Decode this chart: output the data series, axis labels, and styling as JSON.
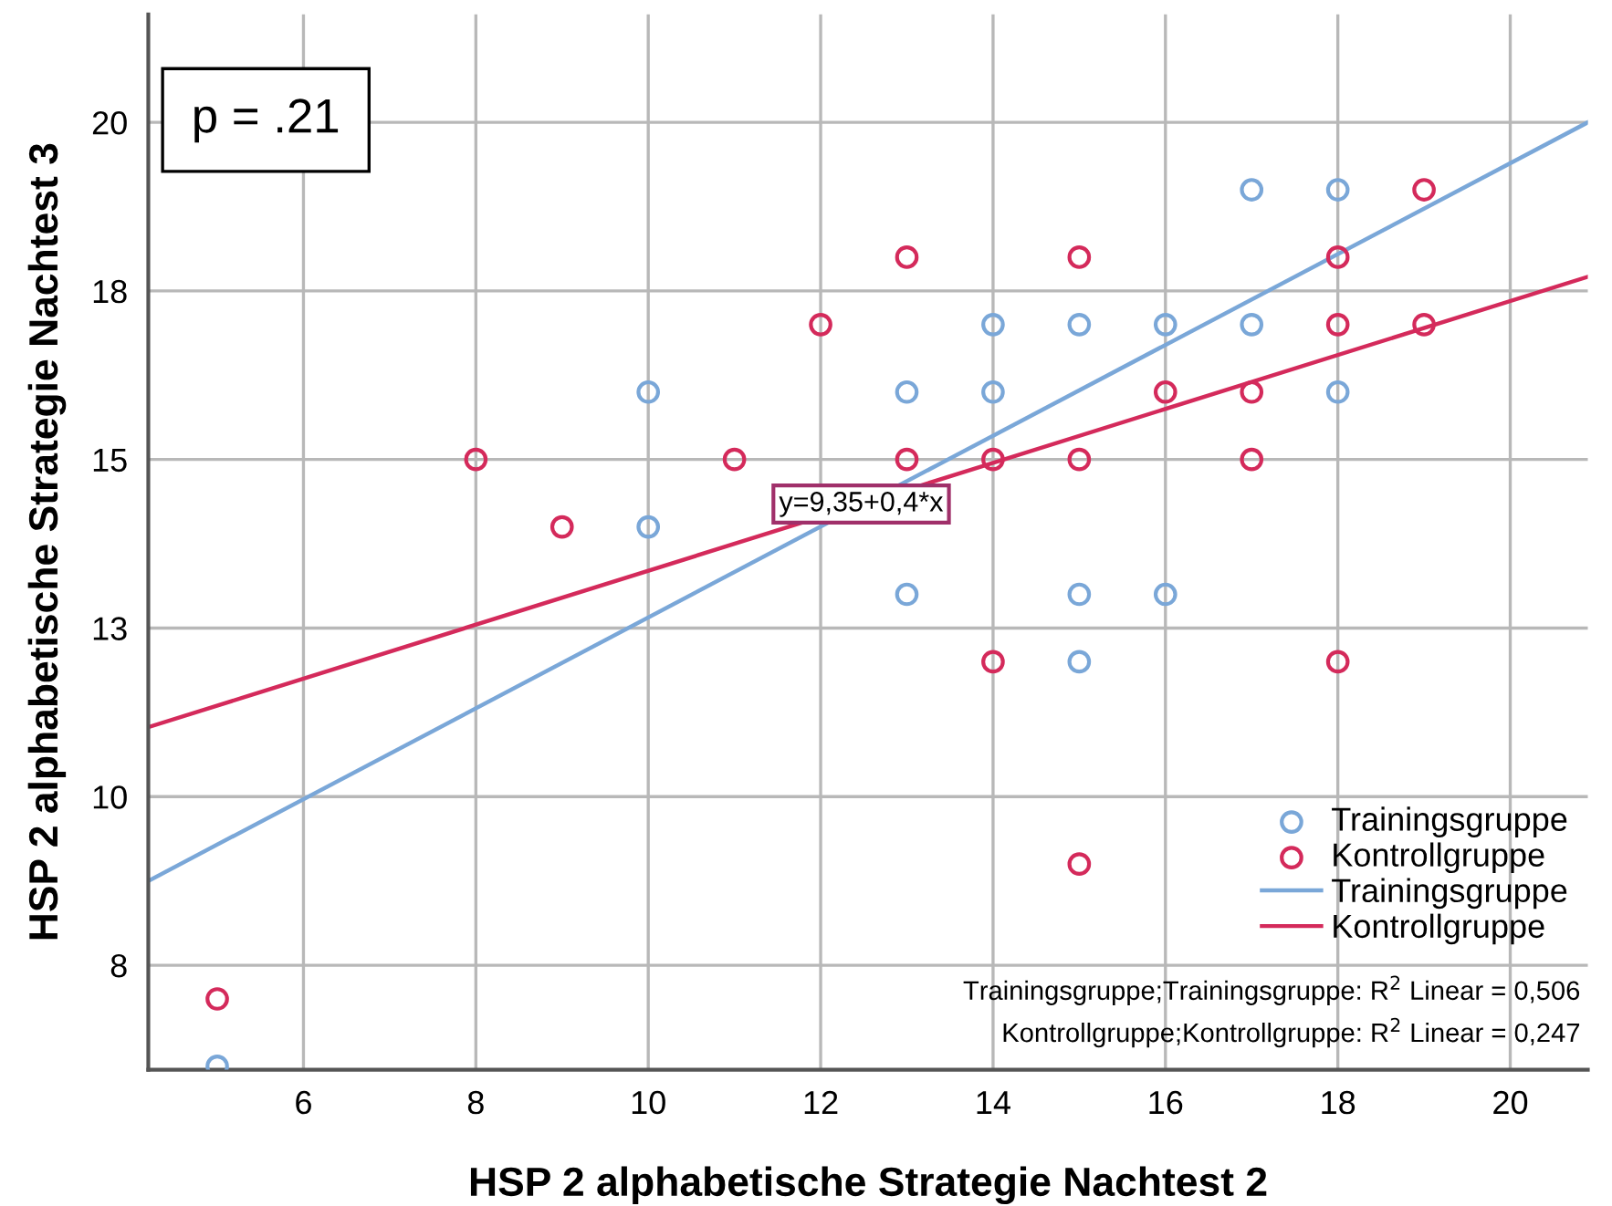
{
  "chart_data": {
    "type": "scatter",
    "xlabel": "HSP 2 alphabetische Strategie Nachtest 2",
    "ylabel": "HSP 2 alphabetische Strategie Nachtest 3",
    "xlim": [
      4.2,
      20.9
    ],
    "xticks": [
      6,
      8,
      10,
      12,
      14,
      16,
      18,
      20
    ],
    "ylim": [
      5.95,
      21.6
    ],
    "yticks": [
      {
        "value": 7.5,
        "label": "8"
      },
      10,
      {
        "value": 12.5,
        "label": "13"
      },
      15,
      {
        "value": 17.5,
        "label": "18"
      },
      20
    ],
    "grid": true,
    "legend": "bottom right",
    "marker": "circle",
    "series": [
      {
        "name": "Trainingsgruppe",
        "color": "#7aa7d8",
        "x": [
          5,
          10,
          10,
          13,
          13,
          14,
          14,
          15,
          15,
          15,
          16,
          16,
          17,
          17,
          18,
          18
        ],
        "values": [
          6,
          16,
          14,
          16,
          13,
          17,
          16,
          17,
          13,
          12,
          17,
          13,
          19,
          17,
          19,
          16
        ]
      },
      {
        "name": "Kontrollgruppe",
        "color": "#d42a5b",
        "x": [
          5,
          8,
          9,
          11,
          12,
          13,
          13,
          14,
          14,
          15,
          15,
          15,
          16,
          17,
          17,
          18,
          18,
          18,
          19,
          19
        ],
        "values": [
          7,
          15,
          14,
          15,
          17,
          18,
          15,
          15,
          12,
          18,
          15,
          9,
          16,
          16,
          15,
          18,
          17,
          12,
          19,
          17
        ]
      },
      {
        "name": "Trainingsgruppe",
        "type": "line",
        "marker": "none",
        "line_style": "solid",
        "color": "#7aa7d8",
        "x": [
          4.2,
          20.9
        ],
        "values": [
          8.75,
          20.0
        ]
      },
      {
        "name": "Kontrollgruppe",
        "type": "line",
        "marker": "none",
        "line_style": "solid",
        "color": "#d42a5b",
        "x": [
          4.2,
          20.9
        ],
        "values": [
          11.03,
          17.71
        ]
      }
    ],
    "annotations": [
      "p = .21",
      {
        "text": "y=9,35+0,4*x",
        "x": 12.47,
        "y": 14.34
      },
      "Trainingsgruppe;Trainingsgruppe: R$^{2}$ Linear = 0,506",
      "Kontrollgruppe;Kontrollgruppe: R$^{2}$ Linear = 0,247"
    ]
  }
}
